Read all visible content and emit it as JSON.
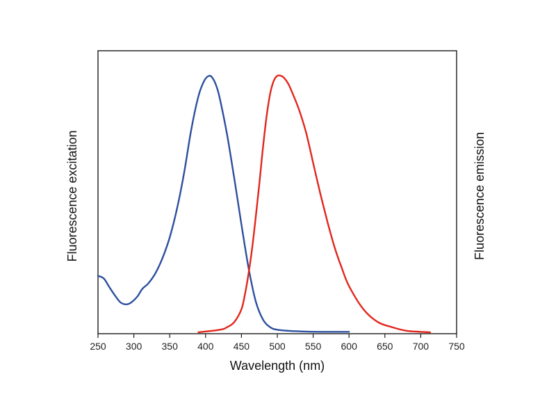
{
  "chart_data": {
    "type": "line",
    "xlabel": "Wavelength (nm)",
    "ylabel_left": "Fluorescence excitation",
    "ylabel_right": "Fluorescence emission",
    "xlim": [
      250,
      750
    ],
    "ylim": [
      0,
      1
    ],
    "x_ticks": [
      250,
      300,
      350,
      400,
      450,
      500,
      550,
      600,
      650,
      700,
      750
    ],
    "y_ticks_shown": false,
    "grid": false,
    "legend": "none",
    "series": [
      {
        "color": "#2c4f9e",
        "x": [
          250,
          258,
          265,
          272,
          280,
          286,
          292,
          298,
          305,
          312,
          320,
          330,
          340,
          350,
          360,
          370,
          380,
          390,
          398,
          405,
          410,
          415,
          420,
          430,
          440,
          450,
          460,
          470,
          480,
          490,
          500,
          520,
          540,
          560,
          580,
          600
        ],
        "y": [
          0.22,
          0.21,
          0.18,
          0.15,
          0.12,
          0.11,
          0.11,
          0.12,
          0.14,
          0.17,
          0.19,
          0.23,
          0.29,
          0.37,
          0.48,
          0.62,
          0.79,
          0.92,
          0.98,
          1.0,
          0.99,
          0.96,
          0.91,
          0.77,
          0.6,
          0.42,
          0.25,
          0.12,
          0.05,
          0.02,
          0.01,
          0.005,
          0.003,
          0.002,
          0.002,
          0.002
        ]
      },
      {
        "color": "#e1261c",
        "x": [
          390,
          420,
          430,
          440,
          450,
          455,
          460,
          465,
          470,
          475,
          480,
          485,
          490,
          495,
          500,
          505,
          510,
          515,
          520,
          530,
          540,
          550,
          560,
          570,
          580,
          590,
          600,
          620,
          640,
          660,
          680,
          700,
          713
        ],
        "y": [
          0.0,
          0.01,
          0.02,
          0.04,
          0.09,
          0.15,
          0.23,
          0.33,
          0.45,
          0.58,
          0.72,
          0.84,
          0.93,
          0.98,
          1.0,
          1.0,
          0.99,
          0.97,
          0.94,
          0.87,
          0.78,
          0.66,
          0.54,
          0.43,
          0.33,
          0.25,
          0.18,
          0.09,
          0.04,
          0.02,
          0.006,
          0.002,
          0.0
        ]
      }
    ]
  }
}
